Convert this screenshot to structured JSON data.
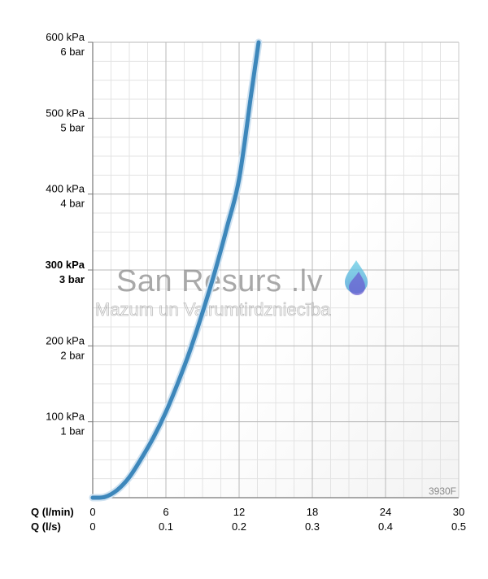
{
  "chart_data": {
    "type": "line",
    "x_axis": {
      "unit_primary": "Q (l/min)",
      "unit_secondary": "Q (l/s)",
      "ticks_primary": [
        "0",
        "6",
        "12",
        "18",
        "24",
        "30"
      ],
      "ticks_secondary": [
        "0",
        "0.1",
        "0.2",
        "0.3",
        "0.4",
        "0.5"
      ],
      "range": [
        0,
        30
      ]
    },
    "y_axis": {
      "ticks": [
        {
          "value": 100,
          "kpa": "100 kPa",
          "bar": "1 bar",
          "bold": false
        },
        {
          "value": 200,
          "kpa": "200 kPa",
          "bar": "2 bar",
          "bold": false
        },
        {
          "value": 300,
          "kpa": "300 kPa",
          "bar": "3 bar",
          "bold": true
        },
        {
          "value": 400,
          "kpa": "400 kPa",
          "bar": "4 bar",
          "bold": false
        },
        {
          "value": 500,
          "kpa": "500 kPa",
          "bar": "5 bar",
          "bold": false
        },
        {
          "value": 600,
          "kpa": "600 kPa",
          "bar": "6 bar",
          "bold": false
        }
      ],
      "range": [
        0,
        600
      ]
    },
    "series": [
      {
        "color": "#3d87bb",
        "points": [
          [
            0,
            0
          ],
          [
            1,
            1
          ],
          [
            2,
            10
          ],
          [
            3,
            27
          ],
          [
            4,
            52
          ],
          [
            5,
            80
          ],
          [
            6,
            113
          ],
          [
            7,
            152
          ],
          [
            8,
            195
          ],
          [
            9,
            244
          ],
          [
            10,
            297
          ],
          [
            11,
            356
          ],
          [
            12,
            420
          ],
          [
            13,
            533
          ],
          [
            13.6,
            600
          ]
        ]
      }
    ],
    "grid": true,
    "minor_grid": true,
    "model_label": "3930F"
  },
  "watermark": {
    "title": "San Resurs .lv",
    "subtitle": "Mazum un Vairumtirdzniecība",
    "drop_icon": "water-drop-icon",
    "drop_color": "#5a8fd0"
  }
}
